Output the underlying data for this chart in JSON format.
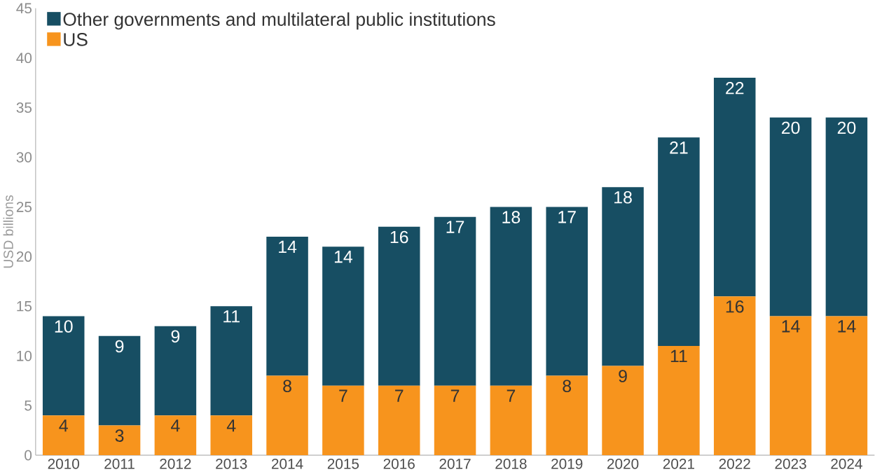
{
  "chart_data": {
    "type": "bar",
    "stacked": true,
    "ylabel": "USD billions",
    "categories": [
      "2010",
      "2011",
      "2012",
      "2013",
      "2014",
      "2015",
      "2016",
      "2017",
      "2018",
      "2019",
      "2020",
      "2021",
      "2022",
      "2023",
      "2024"
    ],
    "series": [
      {
        "name": "US",
        "color": "#f7941d",
        "values": [
          4,
          3,
          4,
          4,
          8,
          7,
          7,
          7,
          7,
          8,
          9,
          11,
          16,
          14,
          14
        ]
      },
      {
        "name": "Other governments and multilateral public institutions",
        "color": "#174e63",
        "values": [
          10,
          9,
          9,
          11,
          14,
          14,
          16,
          17,
          18,
          17,
          18,
          21,
          22,
          20,
          20
        ]
      }
    ],
    "ylim": [
      0,
      45
    ],
    "yticks": [
      0,
      5,
      10,
      15,
      20,
      25,
      30,
      35,
      40,
      45
    ],
    "data_labels": true,
    "legend": "top left",
    "grid": false
  }
}
